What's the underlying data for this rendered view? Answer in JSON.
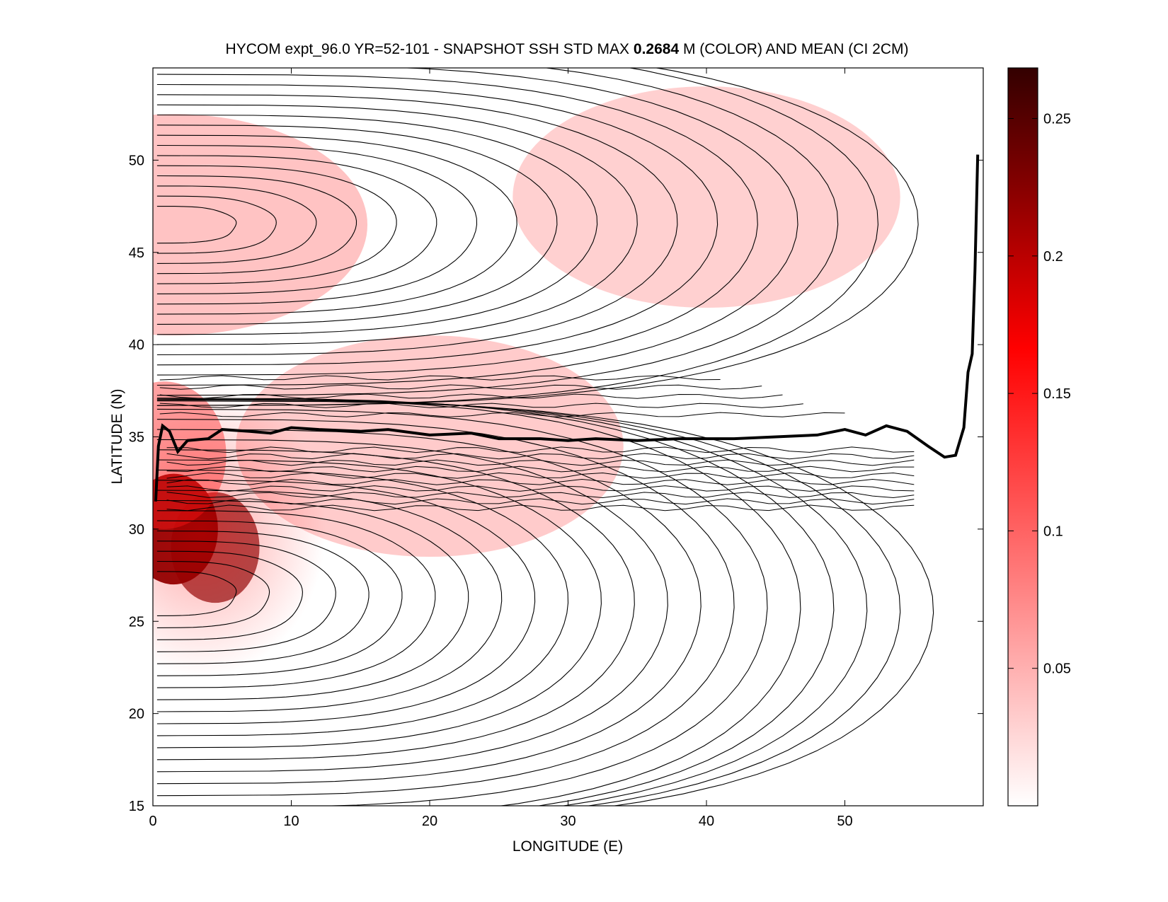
{
  "chart_data": {
    "type": "heatmap",
    "title": {
      "prefix": "HYCOM expt_96.0 YR=52-101 - SNAPSHOT SSH STD MAX ",
      "max_value": "0.2684",
      "suffix": " M (COLOR) AND MEAN (CI 2CM)"
    },
    "xlabel": "LONGITUDE (E)",
    "ylabel": "LATITUDE (N)",
    "xlim": [
      0,
      60
    ],
    "ylim": [
      15,
      55
    ],
    "xticks": [
      0,
      10,
      20,
      30,
      40,
      50
    ],
    "yticks": [
      15,
      20,
      25,
      30,
      35,
      40,
      45,
      50
    ],
    "grid": false,
    "colorbar": {
      "range": [
        0,
        0.2684
      ],
      "ticks": [
        0.05,
        0.1,
        0.15,
        0.2,
        0.25
      ],
      "tick_labels": [
        "0.05",
        "0.1",
        "0.15",
        "0.2",
        "0.25"
      ],
      "colors": [
        "#ffffff",
        "#ff8080",
        "#ff0000",
        "#800000",
        "#330000"
      ]
    },
    "contour_interval_m": 0.02,
    "zero_contour": [
      [
        0.2,
        31.5
      ],
      [
        0.4,
        34.5
      ],
      [
        0.7,
        35.6
      ],
      [
        1.2,
        35.3
      ],
      [
        1.8,
        34.2
      ],
      [
        2.5,
        34.8
      ],
      [
        4,
        34.9
      ],
      [
        5,
        35.4
      ],
      [
        7,
        35.3
      ],
      [
        8.5,
        35.2
      ],
      [
        10,
        35.5
      ],
      [
        12,
        35.4
      ],
      [
        15,
        35.3
      ],
      [
        17,
        35.4
      ],
      [
        20,
        35.1
      ],
      [
        23,
        35.2
      ],
      [
        25,
        34.9
      ],
      [
        28,
        34.9
      ],
      [
        30,
        34.8
      ],
      [
        32,
        34.9
      ],
      [
        35,
        34.8
      ],
      [
        38,
        34.9
      ],
      [
        42,
        34.9
      ],
      [
        45,
        35.0
      ],
      [
        48,
        35.1
      ],
      [
        50,
        35.4
      ],
      [
        51.5,
        35.1
      ],
      [
        53,
        35.6
      ],
      [
        54.5,
        35.3
      ],
      [
        56,
        34.5
      ],
      [
        57.2,
        33.9
      ],
      [
        58,
        34.0
      ],
      [
        58.6,
        35.5
      ],
      [
        58.9,
        38.5
      ],
      [
        59.2,
        39.5
      ],
      [
        59.4,
        44
      ],
      [
        59.6,
        50.3
      ]
    ],
    "variability_centers": [
      {
        "lon": 1.5,
        "lat": 30.0,
        "std_m": 0.2684
      },
      {
        "lon": 4.5,
        "lat": 29.0,
        "std_m": 0.15
      },
      {
        "lon": 0.8,
        "lat": 34.0,
        "std_m": 0.08
      },
      {
        "lon": 1.5,
        "lat": 46.5,
        "std_m": 0.04
      },
      {
        "lon": 20.0,
        "lat": 34.5,
        "std_m": 0.03
      },
      {
        "lon": 40.0,
        "lat": 48.0,
        "std_m": 0.025
      }
    ]
  }
}
